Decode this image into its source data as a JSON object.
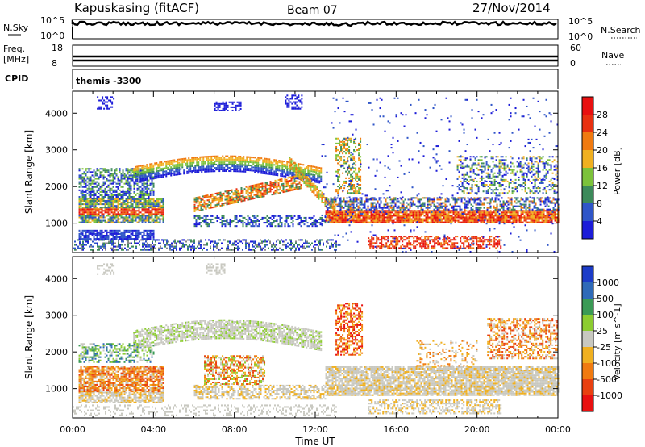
{
  "header": {
    "station": "Kapuskasing (fitACF)",
    "beam": "Beam 07",
    "date": "27/Nov/2014"
  },
  "strips": {
    "nsky": {
      "label": "N.Sky",
      "tick_top": "10^5",
      "tick_bottom": "10^0"
    },
    "nsearch": {
      "label": "N.Search",
      "tick_top": "10^5",
      "tick_bottom": "10^0"
    },
    "freq": {
      "label_line1": "Freq.",
      "label_line2": "[MHz]",
      "tick_top": "18",
      "tick_bottom": "8"
    },
    "nave": {
      "label": "Nave",
      "tick_top": "60",
      "tick_bottom": "0"
    },
    "cpid": {
      "label": "CPID",
      "value": "themis -3300"
    }
  },
  "chart_data": [
    {
      "type": "heatmap",
      "panel": "power",
      "ylabel": "Slant Range [km]",
      "yticks": [
        1000,
        2000,
        3000,
        4000
      ],
      "ylim": [
        200,
        4600
      ],
      "xlim": [
        0,
        24
      ],
      "colorbar_label": "Power [dB]",
      "colorbar_ticks": [
        "4",
        "8",
        "12",
        "16",
        "20",
        "24",
        "28"
      ],
      "colors": [
        "#1c1cd8",
        "#2f55c8",
        "#3c8a5a",
        "#7cc23a",
        "#f0b020",
        "#f07a10",
        "#e83010",
        "#e81010"
      ]
    },
    {
      "type": "heatmap",
      "panel": "velocity",
      "ylabel": "Slant Range [km]",
      "yticks": [
        1000,
        2000,
        3000,
        4000
      ],
      "ylim": [
        200,
        4600
      ],
      "xlim": [
        0,
        24
      ],
      "colorbar_label": "Velocity [m s^-1]",
      "colorbar_ticks": [
        "1000",
        "500",
        "100",
        "25",
        "-25",
        "-100",
        "-500",
        "-1000"
      ],
      "colors": [
        "#1c3cc8",
        "#2f6ab8",
        "#3a9a55",
        "#8ccc30",
        "#c8c8c0",
        "#f0b020",
        "#f07a10",
        "#e84010",
        "#e81010"
      ]
    }
  ],
  "xaxis": {
    "label": "Time UT",
    "ticks": [
      "00:00",
      "04:00",
      "08:00",
      "12:00",
      "16:00",
      "20:00",
      "00:00"
    ],
    "values": [
      0,
      4,
      8,
      12,
      16,
      20,
      24
    ]
  }
}
